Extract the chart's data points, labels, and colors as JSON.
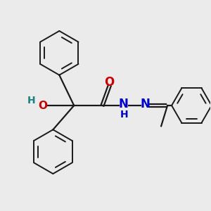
{
  "background_color": "#ebebeb",
  "bond_color": "#1a1a1a",
  "o_color": "#cc0000",
  "n_color": "#0000cc",
  "h_color": "#1a8080",
  "figsize": [
    3.0,
    3.0
  ],
  "dpi": 100,
  "xlim": [
    0,
    10
  ],
  "ylim": [
    0,
    10
  ]
}
